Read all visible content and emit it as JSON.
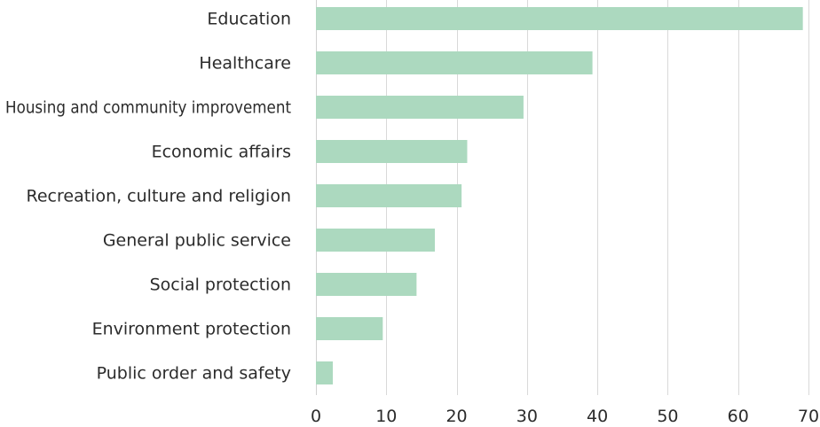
{
  "chart_data": {
    "type": "bar",
    "orientation": "horizontal",
    "title": "",
    "xlabel": "",
    "ylabel": "",
    "categories": [
      "Education",
      "Healthcare",
      "Housing and community improvement",
      "Economic affairs",
      "Recreation, culture and religion",
      "General public service",
      "Social protection",
      "Environment protection",
      "Public order and safety"
    ],
    "values": [
      69.2,
      39.3,
      29.5,
      21.5,
      20.7,
      16.9,
      14.3,
      9.5,
      2.4
    ],
    "xlim": [
      0,
      70
    ],
    "xticks": [
      0,
      10,
      20,
      30,
      40,
      50,
      60,
      70
    ],
    "grid": "vertical",
    "legend": "none",
    "bar_color": "#acd9bf"
  }
}
